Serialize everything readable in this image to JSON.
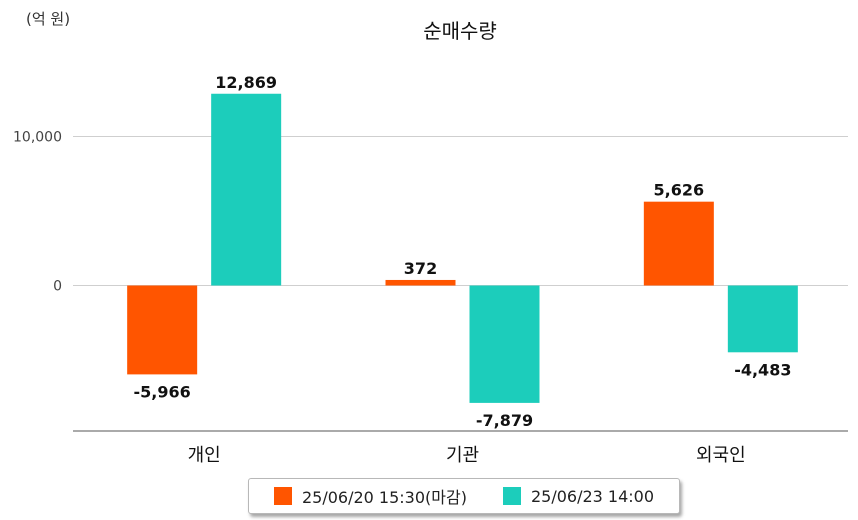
{
  "chart_data": {
    "type": "bar",
    "title": "순매수량",
    "unit_label": "(억 원)",
    "categories": [
      "개인",
      "기관",
      "외국인"
    ],
    "series": [
      {
        "name": "25/06/20 15:30(마감)",
        "color": "#ff5500",
        "values": [
          -5966,
          372,
          5626
        ],
        "labels": [
          "-5,966",
          "372",
          "5,626"
        ]
      },
      {
        "name": "25/06/23 14:00",
        "color": "#1ccdbb",
        "values": [
          12869,
          -7879,
          -4483
        ],
        "labels": [
          "12,869",
          "-7,879",
          "-4,483"
        ]
      }
    ],
    "y_ticks": [
      0,
      10000
    ],
    "y_tick_labels": [
      "0",
      "10,000"
    ],
    "ylim": [
      -9800,
      14500
    ],
    "grid": true,
    "legend_position": "bottom-center"
  }
}
